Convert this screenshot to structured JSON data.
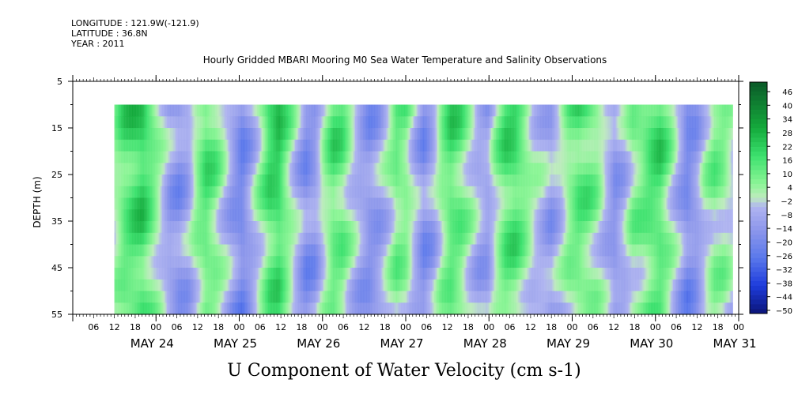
{
  "header": {
    "longitude": "LONGITUDE : 121.9W(-121.9)",
    "latitude": "LATITUDE : 36.8N",
    "year": "YEAR : 2011"
  },
  "chart_data": {
    "type": "heatmap",
    "title": "Hourly Gridded MBARI Mooring M0 Sea Water Temperature and Salinity Observations",
    "xlabel": "U Component of Water Velocity (cm s-1)",
    "ylabel": "DEPTH (m)",
    "ylim": [
      5,
      55
    ],
    "y_inverted": true,
    "y_ticks": [
      5,
      15,
      25,
      35,
      45,
      55
    ],
    "data_depth_range": [
      10,
      55
    ],
    "x_start": "2011-05-23 00:00",
    "x_end": "2011-05-30 23:00",
    "data_start": "2011-05-23 12:00",
    "x_hour_ticks": [
      "06",
      "12",
      "18",
      "00",
      "06",
      "12",
      "18",
      "00",
      "06",
      "12",
      "18",
      "00",
      "06",
      "12",
      "18",
      "00",
      "06",
      "12",
      "18",
      "00",
      "06",
      "12",
      "18",
      "00",
      "06",
      "12",
      "18",
      "00",
      "06",
      "12",
      "18",
      "00"
    ],
    "x_day_labels": [
      "MAY 24",
      "MAY 25",
      "MAY 26",
      "MAY 27",
      "MAY 28",
      "MAY 29",
      "MAY 30",
      "MAY 31"
    ],
    "colorbar": {
      "range": [
        -50,
        50
      ],
      "labels": [
        "46",
        "40",
        "34",
        "28",
        "22",
        "16",
        "10",
        "4",
        "−2",
        "−8",
        "−14",
        "−20",
        "−26",
        "−32",
        "−38",
        "−44",
        "−50"
      ]
    },
    "series": [
      {
        "values": [
          6,
          16,
          21,
          24,
          14,
          2,
          -10,
          -14,
          -8,
          8,
          18,
          12,
          0,
          -12,
          -20,
          -8,
          6,
          20,
          24,
          10,
          -4,
          -16,
          -12,
          4,
          16,
          14,
          2,
          -8,
          -14,
          -10,
          0,
          12,
          10,
          -4,
          -16,
          -8,
          8,
          18,
          14,
          4,
          -6,
          -10,
          6,
          18,
          20,
          12,
          2,
          -4,
          -10,
          -2,
          10,
          16,
          14,
          8,
          -4,
          -14,
          -6,
          8,
          12,
          18,
          20,
          8,
          -6,
          -18,
          -12,
          2,
          10,
          8,
          0
        ]
      }
    ]
  }
}
